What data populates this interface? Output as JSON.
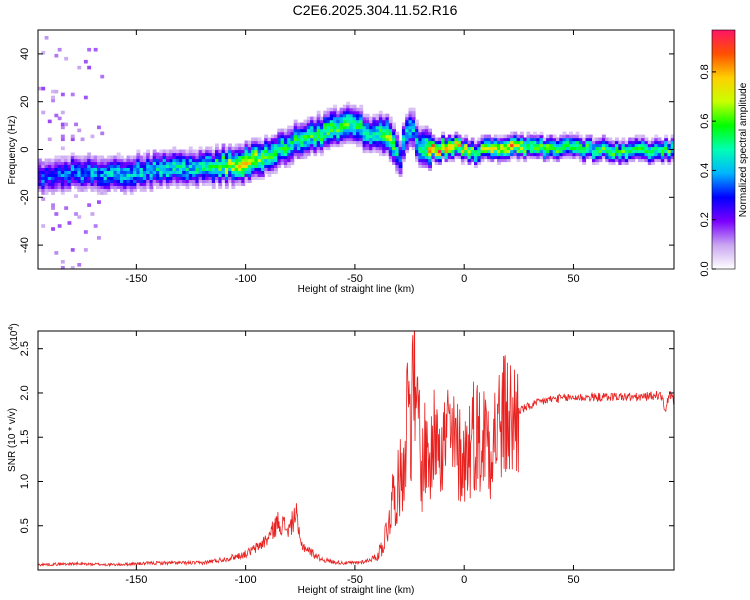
{
  "title": "C2E6.2025.304.11.52.R16",
  "chart_data": [
    {
      "type": "heatmap",
      "name": "spectrogram",
      "xlabel": "Height of straight line (km)",
      "ylabel": "Frequency (Hz)",
      "xlim": [
        -195,
        96
      ],
      "ylim": [
        -50,
        50
      ],
      "xticks": [
        -150,
        -100,
        -50,
        0,
        50
      ],
      "yticks": [
        -40,
        -20,
        0,
        20,
        40
      ],
      "colorbar": {
        "label": "Normalized spectral amplitude",
        "range": [
          0.0,
          0.97
        ],
        "ticks": [
          "0.0",
          "0.2",
          "0.4",
          "0.6",
          "0.8"
        ],
        "tick_values": [
          0.0,
          0.2,
          0.4,
          0.6,
          0.8
        ],
        "colors": [
          "#ffffff",
          "#c9a6f0",
          "#7a00ff",
          "#0000ff",
          "#00b4ff",
          "#00ffb4",
          "#00ff00",
          "#c8ff00",
          "#ffd000",
          "#ff5000",
          "#ff1466"
        ]
      },
      "ridge": {
        "x": [
          -195,
          -180,
          -160,
          -140,
          -120,
          -100,
          -90,
          -80,
          -70,
          -60,
          -50,
          -45,
          -40,
          -35,
          -30,
          -28,
          -25,
          -22,
          -20,
          -15,
          -10,
          -5,
          0,
          5,
          10,
          15,
          20,
          30,
          50,
          70,
          96
        ],
        "freq": [
          -12,
          -10,
          -11,
          -9,
          -8,
          -6,
          -3,
          2,
          5,
          8,
          10,
          6,
          7,
          5,
          -4,
          5,
          10,
          2,
          0,
          0,
          0,
          1,
          0,
          -2,
          0,
          0,
          1,
          0,
          0,
          -1,
          -1
        ],
        "amp": [
          0.35,
          0.4,
          0.45,
          0.5,
          0.5,
          0.85,
          0.6,
          0.55,
          0.6,
          0.65,
          0.6,
          0.5,
          0.55,
          0.7,
          0.4,
          0.5,
          0.45,
          0.5,
          0.6,
          0.9,
          0.95,
          0.8,
          0.7,
          0.6,
          0.75,
          0.8,
          0.85,
          0.65,
          0.6,
          0.6,
          0.6
        ]
      }
    },
    {
      "type": "line",
      "name": "snr",
      "xlabel": "Height of straight line (km)",
      "ylabel": "SNR (10 * v/v)",
      "yscale_label": "(x10",
      "yscale_exp": "4",
      "xlim": [
        -195,
        96
      ],
      "ylim": [
        0,
        2.7
      ],
      "xticks": [
        -150,
        -100,
        -50,
        0,
        50
      ],
      "yticks": [
        0.5,
        1.0,
        1.5,
        2.0,
        2.5
      ],
      "ytick_labels": [
        "0.5",
        "1.0",
        "1.5",
        "2.0",
        "2.5"
      ],
      "color": "#e8211f",
      "series": [
        {
          "name": "SNR",
          "x": [
            -195,
            -180,
            -160,
            -140,
            -120,
            -110,
            -100,
            -95,
            -90,
            -85,
            -80,
            -77,
            -75,
            -70,
            -65,
            -60,
            -55,
            -50,
            -45,
            -40,
            -37,
            -35,
            -33,
            -30,
            -28,
            -26,
            -25,
            -24,
            -23,
            -22,
            -21,
            -20,
            -18,
            -15,
            -12,
            -10,
            -8,
            -5,
            -3,
            0,
            3,
            5,
            8,
            10,
            12,
            15,
            18,
            20,
            22,
            25,
            30,
            35,
            40,
            50,
            60,
            70,
            80,
            90,
            92,
            94,
            96
          ],
          "y": [
            0.06,
            0.07,
            0.06,
            0.08,
            0.08,
            0.12,
            0.18,
            0.25,
            0.35,
            0.55,
            0.45,
            0.65,
            0.3,
            0.2,
            0.12,
            0.09,
            0.08,
            0.08,
            0.1,
            0.15,
            0.3,
            0.5,
            0.8,
            0.95,
            1.2,
            1.8,
            2.2,
            1.5,
            2.7,
            1.3,
            2.1,
            1.0,
            1.4,
            1.2,
            1.9,
            1.3,
            1.6,
            1.4,
            1.35,
            1.25,
            1.45,
            1.6,
            1.4,
            1.6,
            1.45,
            1.6,
            1.7,
            1.75,
            1.65,
            1.8,
            1.85,
            1.9,
            1.93,
            1.95,
            1.95,
            1.96,
            1.95,
            1.98,
            1.8,
            2.0,
            1.9
          ]
        }
      ]
    }
  ]
}
